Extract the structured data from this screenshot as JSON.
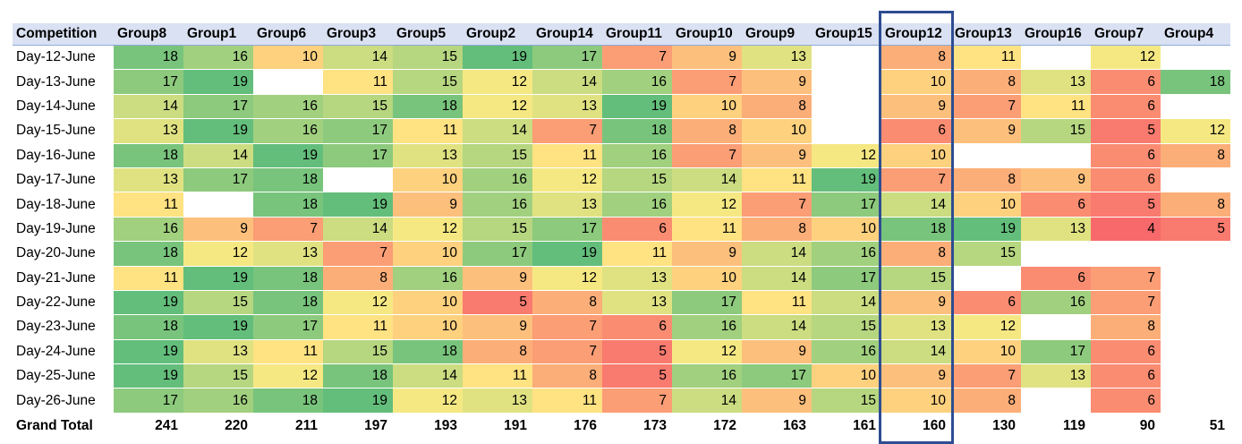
{
  "chart_data": {
    "type": "heatmap",
    "corner_label": "Competition",
    "columns": [
      "Group8",
      "Group1",
      "Group6",
      "Group3",
      "Group5",
      "Group2",
      "Group14",
      "Group11",
      "Group10",
      "Group9",
      "Group15",
      "Group12",
      "Group13",
      "Group16",
      "Group7",
      "Group4"
    ],
    "rows": [
      {
        "label": "Day-12-June",
        "values": [
          18,
          16,
          10,
          14,
          15,
          19,
          17,
          7,
          9,
          13,
          null,
          8,
          11,
          null,
          12,
          null
        ]
      },
      {
        "label": "Day-13-June",
        "values": [
          17,
          19,
          null,
          11,
          15,
          12,
          14,
          16,
          7,
          9,
          null,
          10,
          8,
          13,
          6,
          18
        ]
      },
      {
        "label": "Day-14-June",
        "values": [
          14,
          17,
          16,
          15,
          18,
          12,
          13,
          19,
          10,
          8,
          null,
          9,
          7,
          11,
          6,
          null
        ]
      },
      {
        "label": "Day-15-June",
        "values": [
          13,
          19,
          16,
          17,
          11,
          14,
          7,
          18,
          8,
          10,
          null,
          6,
          9,
          15,
          5,
          12
        ]
      },
      {
        "label": "Day-16-June",
        "values": [
          18,
          14,
          19,
          17,
          13,
          15,
          11,
          16,
          7,
          9,
          12,
          10,
          null,
          null,
          6,
          8
        ]
      },
      {
        "label": "Day-17-June",
        "values": [
          13,
          17,
          18,
          null,
          10,
          16,
          12,
          15,
          14,
          11,
          19,
          7,
          8,
          9,
          6,
          null
        ]
      },
      {
        "label": "Day-18-June",
        "values": [
          11,
          null,
          18,
          19,
          9,
          16,
          13,
          16,
          12,
          7,
          17,
          14,
          10,
          6,
          5,
          8
        ]
      },
      {
        "label": "Day-19-June",
        "values": [
          16,
          9,
          7,
          14,
          12,
          15,
          17,
          6,
          11,
          8,
          10,
          18,
          19,
          13,
          4,
          5
        ]
      },
      {
        "label": "Day-20-June",
        "values": [
          18,
          12,
          13,
          7,
          10,
          17,
          19,
          11,
          9,
          14,
          16,
          8,
          15,
          null,
          null,
          null
        ]
      },
      {
        "label": "Day-21-June",
        "values": [
          11,
          19,
          18,
          8,
          16,
          9,
          12,
          13,
          10,
          14,
          17,
          15,
          null,
          6,
          7,
          null
        ]
      },
      {
        "label": "Day-22-June",
        "values": [
          19,
          15,
          18,
          12,
          10,
          5,
          8,
          13,
          17,
          11,
          14,
          9,
          6,
          16,
          7,
          null
        ]
      },
      {
        "label": "Day-23-June",
        "values": [
          18,
          19,
          17,
          11,
          10,
          9,
          7,
          6,
          16,
          14,
          15,
          13,
          12,
          null,
          8,
          null
        ]
      },
      {
        "label": "Day-24-June",
        "values": [
          19,
          13,
          11,
          15,
          18,
          8,
          7,
          5,
          12,
          9,
          16,
          14,
          10,
          17,
          6,
          null
        ]
      },
      {
        "label": "Day-25-June",
        "values": [
          19,
          15,
          12,
          18,
          14,
          11,
          8,
          5,
          16,
          17,
          10,
          9,
          7,
          13,
          6,
          null
        ]
      },
      {
        "label": "Day-26-June",
        "values": [
          17,
          16,
          18,
          19,
          12,
          13,
          11,
          7,
          14,
          9,
          15,
          10,
          8,
          null,
          6,
          null
        ]
      }
    ],
    "total_label": "Grand Total",
    "totals": [
      241,
      220,
      211,
      197,
      193,
      191,
      176,
      173,
      172,
      163,
      161,
      160,
      130,
      119,
      90,
      51
    ],
    "color_scale": {
      "min": 4,
      "max": 19,
      "low_color": "#f8696b",
      "mid_color": "#ffeb84",
      "high_color": "#63be7b"
    },
    "highlighted_column": "Group12",
    "highlight_color": "#2e4d91"
  }
}
